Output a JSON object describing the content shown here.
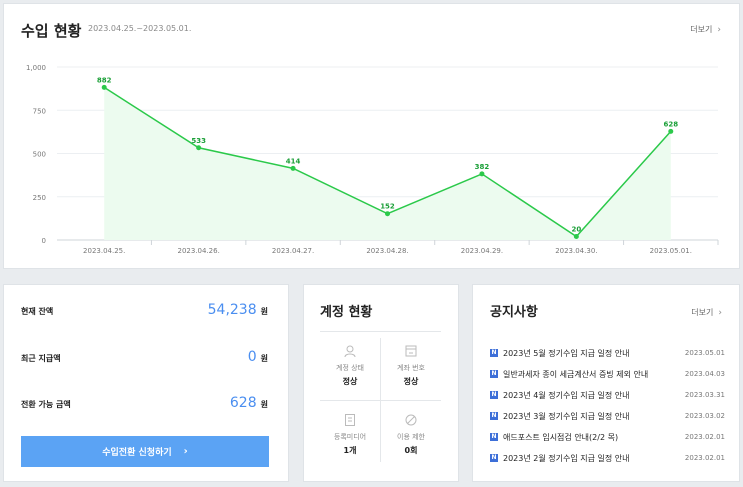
{
  "revenue": {
    "title": "수입 현황",
    "range": "2023.04.25.~2023.05.01.",
    "more_label": "더보기"
  },
  "chart_data": {
    "type": "area",
    "categories": [
      "2023.04.25.",
      "2023.04.26.",
      "2023.04.27.",
      "2023.04.28.",
      "2023.04.29.",
      "2023.04.30.",
      "2023.05.01."
    ],
    "values": [
      882,
      533,
      414,
      152,
      382,
      20,
      628
    ],
    "data_labels": [
      "882",
      "533",
      "414",
      "152",
      "382",
      "20",
      "628"
    ],
    "yticks": [
      "0",
      "250",
      "500",
      "750",
      "1,000"
    ],
    "ytick_values": [
      0,
      250,
      500,
      750,
      1000
    ],
    "ylim": [
      0,
      1000
    ],
    "grid": true,
    "colors": {
      "line": "#2bc94a",
      "fill": "#ecfbef",
      "label": "#1a9f37"
    }
  },
  "balance": {
    "rows": [
      {
        "label": "현재 잔액",
        "value": "54,238",
        "unit": "원"
      },
      {
        "label": "최근 지급액",
        "value": "0",
        "unit": "원"
      },
      {
        "label": "전환 가능 금액",
        "value": "628",
        "unit": "원"
      }
    ],
    "button_label": "수입전환 신청하기"
  },
  "account": {
    "title": "계정 현황",
    "cells": [
      {
        "label": "계정 상태",
        "value": "정상",
        "icon": "user-icon"
      },
      {
        "label": "계좌 번호",
        "value": "정상",
        "icon": "bank-card-icon"
      },
      {
        "label": "등록미디어",
        "value": "1개",
        "icon": "document-icon"
      },
      {
        "label": "이용 제한",
        "value": "0회",
        "icon": "prohibited-icon"
      }
    ]
  },
  "notice": {
    "title": "공지사항",
    "more_label": "더보기",
    "badge": "N",
    "items": [
      {
        "title": "2023년 5월 정기수입 지급 일정 안내",
        "date": "2023.05.01"
      },
      {
        "title": "일반과세자 종이 세금계산서 증빙 제외 안내",
        "date": "2023.04.03"
      },
      {
        "title": "2023년 4월 정기수입 지급 일정 안내",
        "date": "2023.03.31"
      },
      {
        "title": "2023년 3월 정기수입 지급 일정 안내",
        "date": "2023.03.02"
      },
      {
        "title": "애드포스트 임시점검 안내(2/2 목)",
        "date": "2023.02.01"
      },
      {
        "title": "2023년 2월 정기수입 지급 일정 안내",
        "date": "2023.02.01"
      }
    ]
  }
}
